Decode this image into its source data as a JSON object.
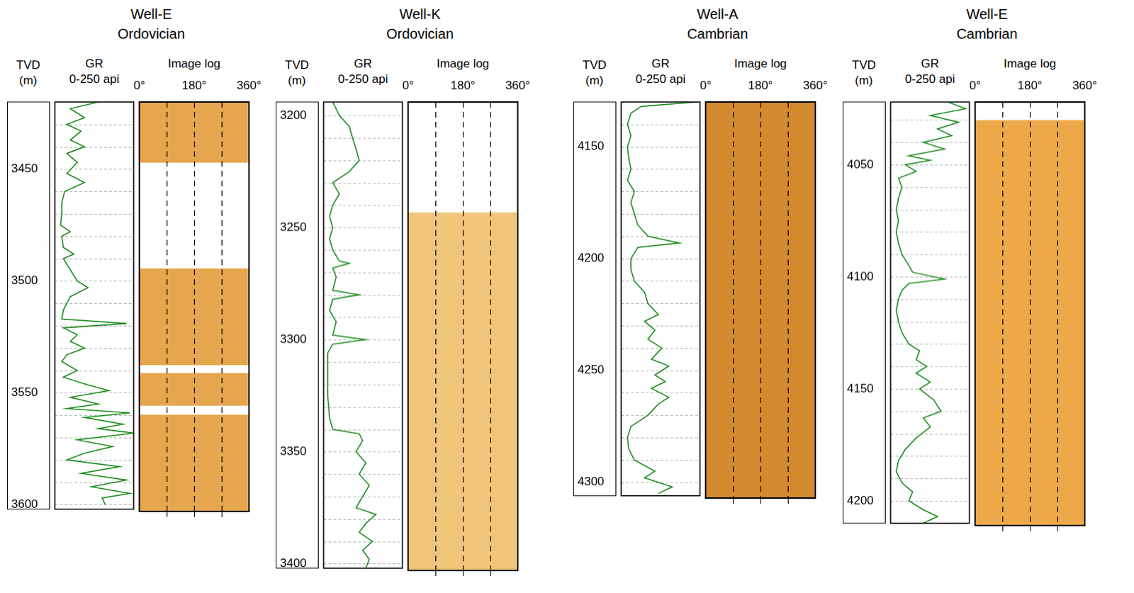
{
  "chart_data": [
    {
      "type": "line",
      "title": "Well-E",
      "subtitle": "Ordovician",
      "ylabel": "TVD (m)",
      "xlabel": "GR",
      "x_range_label": "0-250 api",
      "xlim": [
        0,
        250
      ],
      "ylim": [
        3420,
        3602
      ],
      "yticks": [
        3450,
        3500,
        3550,
        3600
      ],
      "tick_labels": "y",
      "grid": true,
      "series": [
        {
          "color": "#1e8c1e",
          "x": [
            138,
            49,
            94,
            38,
            83,
            49,
            94,
            38,
            71,
            38,
            94,
            31,
            22,
            22,
            18,
            49,
            22,
            27,
            60,
            27,
            49,
            71,
            105,
            49,
            38,
            27,
            22,
            227,
            27,
            71,
            49,
            94,
            38,
            22,
            71,
            27,
            94,
            171,
            49,
            138,
            38,
            238,
            94,
            216,
            138,
            250,
            71,
            183,
            94,
            38,
            205,
            83,
            227,
            116,
            238,
            150,
            160
          ],
          "y": [
            3420,
            3423,
            3427,
            3430,
            3433,
            3437,
            3440,
            3443,
            3447,
            3452,
            3456,
            3460,
            3465,
            3470,
            3475,
            3478,
            3480,
            3485,
            3488,
            3490,
            3495,
            3500,
            3503,
            3507,
            3510,
            3513,
            3517,
            3519,
            3521,
            3524,
            3527,
            3530,
            3533,
            3536,
            3540,
            3543,
            3546,
            3549,
            3552,
            3555,
            3557,
            3559,
            3561,
            3564,
            3566,
            3568,
            3571,
            3574,
            3577,
            3580,
            3583,
            3586,
            3589,
            3592,
            3595,
            3597,
            3600
          ]
        }
      ],
      "image_log": {
        "title": "Image log",
        "xlim": [
          0,
          360
        ],
        "xticks": [
          {
            "value": 0,
            "label": "0°"
          },
          {
            "value": 180,
            "label": "180°"
          },
          {
            "value": 360,
            "label": "360°"
          }
        ],
        "color": "#e6a64e",
        "intervals": [
          [
            3420,
            3447
          ],
          [
            3494,
            3537
          ],
          [
            3540.5,
            3555
          ],
          [
            3559,
            3602
          ]
        ]
      }
    },
    {
      "type": "line",
      "title": "Well-K",
      "subtitle": "Ordovician",
      "ylabel": "TVD (m)",
      "xlabel": "GR",
      "x_range_label": "0-250 api",
      "xlim": [
        0,
        250
      ],
      "ylim": [
        3194,
        3402
      ],
      "yticks": [
        3200,
        3250,
        3300,
        3350,
        3400
      ],
      "tick_labels": "y",
      "grid": true,
      "series": [
        {
          "color": "#1e8c1e",
          "x": [
            29,
            50,
            82,
            92,
            103,
            113,
            82,
            29,
            50,
            29,
            19,
            29,
            19,
            29,
            50,
            82,
            29,
            40,
            29,
            113,
            29,
            19,
            40,
            29,
            134,
            29,
            13,
            13,
            13,
            19,
            29,
            113,
            124,
            103,
            134,
            113,
            145,
            124,
            103,
            166,
            134,
            113,
            155,
            124,
            145,
            134
          ],
          "y": [
            3194,
            3200,
            3205,
            3210,
            3215,
            3220,
            3225,
            3230,
            3235,
            3240,
            3245,
            3250,
            3255,
            3260,
            3265,
            3266,
            3268,
            3272,
            3278,
            3280,
            3282,
            3287,
            3292,
            3298,
            3300,
            3302,
            3306,
            3315,
            3325,
            3335,
            3340,
            3342,
            3345,
            3350,
            3355,
            3360,
            3365,
            3370,
            3375,
            3378,
            3382,
            3386,
            3390,
            3394,
            3398,
            3402
          ]
        }
      ],
      "image_log": {
        "title": "Image log",
        "xlim": [
          0,
          360
        ],
        "xticks": [
          {
            "value": 0,
            "label": "0°"
          },
          {
            "value": 180,
            "label": "180°"
          },
          {
            "value": 360,
            "label": "360°"
          }
        ],
        "color": "#efc57a",
        "intervals": [
          [
            3243,
            3402
          ]
        ]
      }
    },
    {
      "type": "line",
      "title": "Well-A",
      "subtitle": "Cambrian",
      "ylabel": "TVD (m)",
      "xlabel": "GR",
      "x_range_label": "0-250 api",
      "xlim": [
        0,
        250
      ],
      "ylim": [
        4130,
        4306
      ],
      "yticks": [
        4150,
        4200,
        4250,
        4300
      ],
      "tick_labels": "y",
      "grid": true,
      "series": [
        {
          "color": "#1e8c1e",
          "x": [
            239,
            63,
            31,
            20,
            31,
            20,
            24,
            31,
            20,
            42,
            31,
            42,
            53,
            85,
            184,
            53,
            31,
            31,
            42,
            74,
            85,
            118,
            74,
            107,
            85,
            129,
            96,
            151,
            107,
            140,
            96,
            151,
            118,
            85,
            31,
            20,
            24,
            42,
            107,
            74,
            162,
            118
          ],
          "y": [
            4130,
            4132,
            4135,
            4140,
            4145,
            4150,
            4155,
            4160,
            4165,
            4170,
            4175,
            4180,
            4185,
            4190,
            4193,
            4195,
            4200,
            4205,
            4210,
            4215,
            4220,
            4225,
            4228,
            4232,
            4236,
            4240,
            4245,
            4248,
            4252,
            4255,
            4258,
            4262,
            4265,
            4270,
            4275,
            4280,
            4285,
            4290,
            4295,
            4298,
            4302,
            4305
          ]
        }
      ],
      "image_log": {
        "title": "Image log",
        "xlim": [
          0,
          360
        ],
        "xticks": [
          {
            "value": 0,
            "label": "0°"
          },
          {
            "value": 180,
            "label": "180°"
          },
          {
            "value": 360,
            "label": "360°"
          }
        ],
        "color": "#d28a2e",
        "intervals": [
          [
            4130,
            4306
          ]
        ]
      }
    },
    {
      "type": "line",
      "title": "Well-E",
      "subtitle": "Cambrian",
      "ylabel": "TVD (m)",
      "xlabel": "GR",
      "x_range_label": "0-250 api",
      "xlim": [
        0,
        250
      ],
      "ylim": [
        4022,
        4210
      ],
      "yticks": [
        4050,
        4100,
        4150,
        4200
      ],
      "tick_labels": "y",
      "grid": true,
      "series": [
        {
          "color": "#1e8c1e",
          "x": [
            182,
            238,
            126,
            216,
            149,
            194,
            104,
            171,
            58,
            126,
            47,
            81,
            25,
            36,
            25,
            18,
            25,
            18,
            25,
            36,
            58,
            70,
            171,
            58,
            36,
            25,
            18,
            25,
            36,
            58,
            92,
            81,
            115,
            81,
            126,
            92,
            137,
            160,
            104,
            126,
            81,
            47,
            25,
            18,
            36,
            70,
            58,
            104,
            149,
            104
          ],
          "y": [
            4022,
            4025,
            4028,
            4031,
            4034,
            4037,
            4040,
            4043,
            4046,
            4048,
            4050,
            4053,
            4056,
            4060,
            4065,
            4070,
            4075,
            4080,
            4085,
            4090,
            4095,
            4098,
            4101,
            4103,
            4106,
            4110,
            4115,
            4120,
            4125,
            4130,
            4133,
            4137,
            4140,
            4143,
            4147,
            4150,
            4155,
            4160,
            4163,
            4167,
            4172,
            4177,
            4182,
            4187,
            4192,
            4196,
            4200,
            4204,
            4207,
            4210
          ]
        }
      ],
      "image_log": {
        "title": "Image log",
        "xlim": [
          0,
          360
        ],
        "xticks": [
          {
            "value": 0,
            "label": "0°"
          },
          {
            "value": 180,
            "label": "180°"
          },
          {
            "value": 360,
            "label": "360°"
          }
        ],
        "color": "#eda949",
        "intervals": [
          [
            4030,
            4210
          ]
        ]
      }
    }
  ]
}
